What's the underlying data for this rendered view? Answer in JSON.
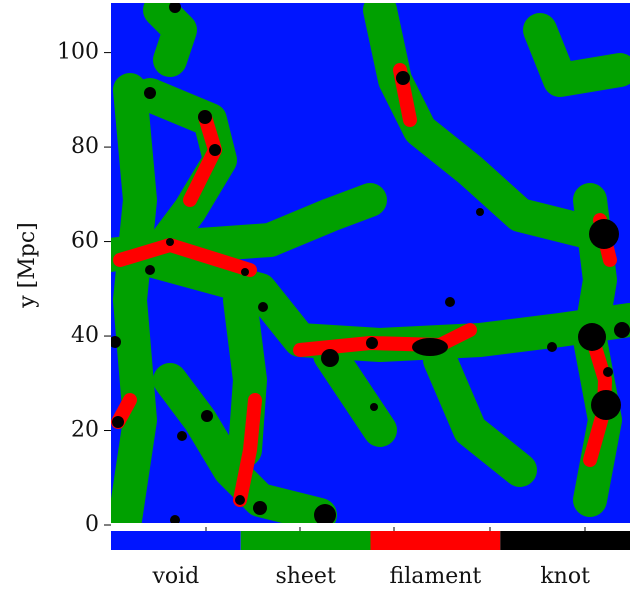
{
  "chart_data": {
    "type": "categorical-map",
    "ylabel": "y [Mpc]",
    "ylim": [
      0,
      110.5
    ],
    "yticks": [
      0,
      20,
      40,
      60,
      80,
      100
    ],
    "categories": [
      "void",
      "sheet",
      "filament",
      "knot"
    ],
    "colors": [
      "#0015ff",
      "#00a000",
      "#ff0000",
      "#000000"
    ]
  }
}
